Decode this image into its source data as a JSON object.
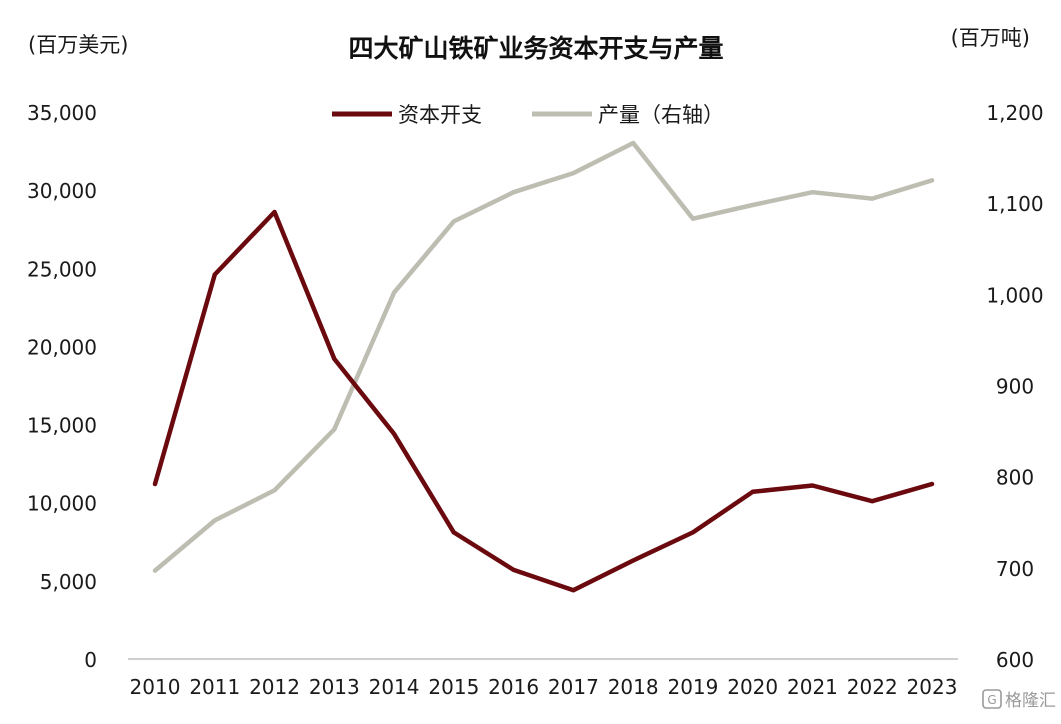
{
  "chart_data": {
    "type": "line",
    "title": "四大矿山铁矿业务资本开支与产量",
    "left_axis": {
      "unit": "(百万美元)",
      "range": [
        0,
        35000
      ],
      "ticks": [
        0,
        5000,
        10000,
        15000,
        20000,
        25000,
        30000,
        35000
      ],
      "tick_labels": [
        "0",
        "5,000",
        "10,000",
        "15,000",
        "20,000",
        "25,000",
        "30,000",
        "35,000"
      ]
    },
    "right_axis": {
      "unit": "(百万吨)",
      "range": [
        600,
        1200
      ],
      "ticks": [
        600,
        700,
        800,
        900,
        1000,
        1100,
        1200
      ],
      "tick_labels": [
        "600",
        "700",
        "800",
        "900",
        "1,000",
        "1,100",
        "1,200"
      ]
    },
    "categories": [
      "2010",
      "2011",
      "2012",
      "2013",
      "2014",
      "2015",
      "2016",
      "2017",
      "2018",
      "2019",
      "2020",
      "2021",
      "2022",
      "2023"
    ],
    "series": [
      {
        "name": "资本开支",
        "axis": "left",
        "color": "#6b0a0e",
        "values": [
          11200,
          24600,
          28600,
          19200,
          14400,
          8100,
          5700,
          4400,
          6300,
          8100,
          10700,
          11100,
          10100,
          11200
        ]
      },
      {
        "name": "产量（右轴）",
        "axis": "right",
        "color": "#bebdb2",
        "values": [
          697,
          752,
          785,
          852,
          1002,
          1080,
          1112,
          1133,
          1166,
          1083,
          1098,
          1112,
          1105,
          1125
        ]
      }
    ],
    "legend_position": "top-center",
    "grid": false
  },
  "watermark": {
    "text": "格隆汇",
    "icon": "gelonghui-logo-icon"
  }
}
